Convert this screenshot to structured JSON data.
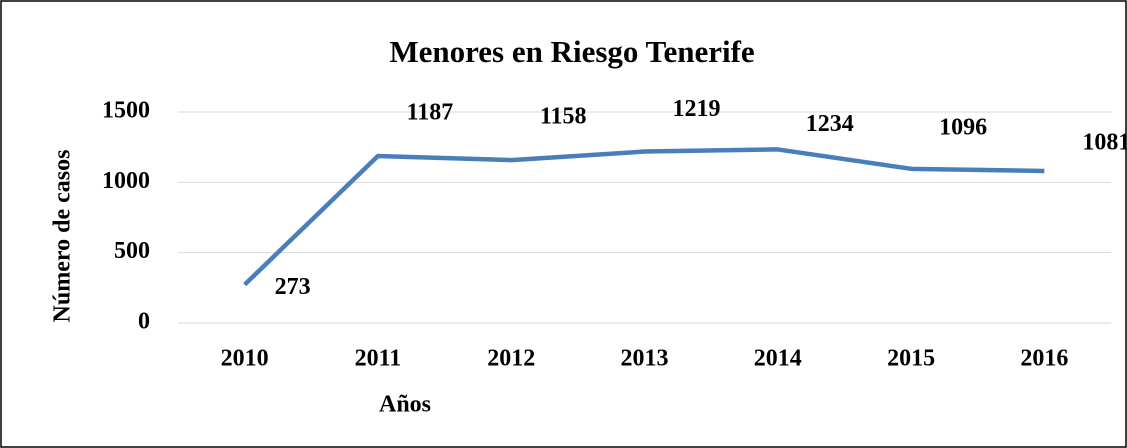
{
  "chart_data": {
    "type": "line",
    "title": "Menores en Riesgo Tenerife",
    "x_label": "Años",
    "y_label": "Número de casos",
    "categories": [
      "2010",
      "2011",
      "2012",
      "2013",
      "2014",
      "2015",
      "2016"
    ],
    "series": [
      {
        "name": "Menores en Riesgo",
        "color": "#4a7ebb",
        "values": [
          273,
          1187,
          1158,
          1219,
          1234,
          1096,
          1081
        ]
      }
    ],
    "ylim": [
      0,
      1500
    ],
    "yticks": [
      0,
      500,
      1000,
      1500
    ],
    "grid": true
  }
}
